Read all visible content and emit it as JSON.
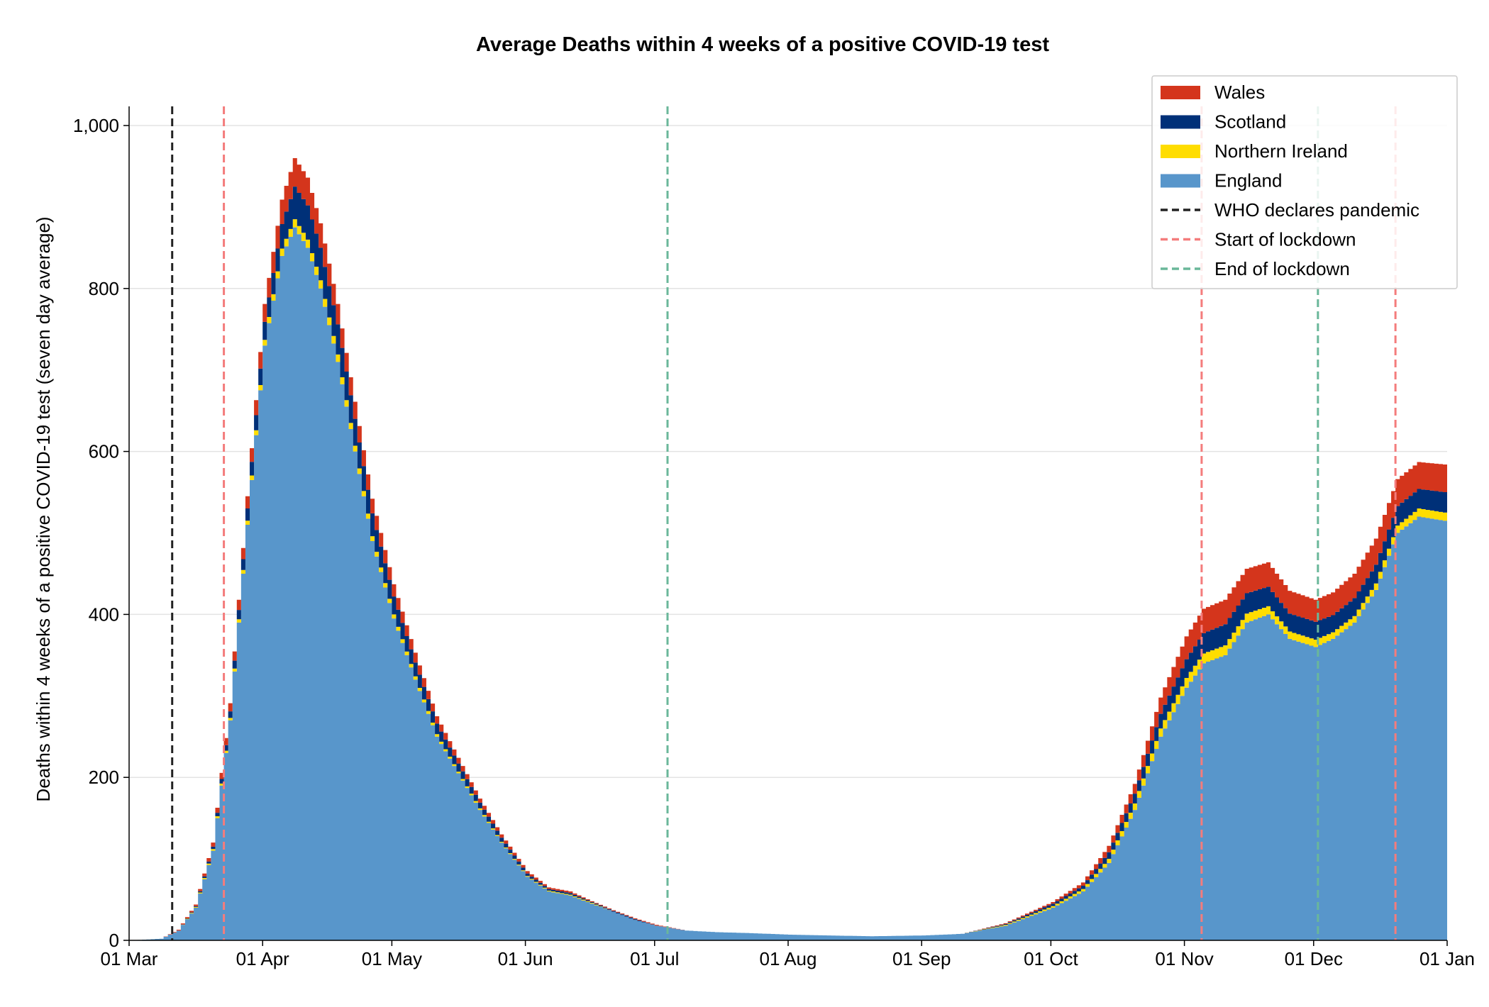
{
  "chart_data": {
    "type": "area",
    "stacked": true,
    "step": true,
    "title": "Average Deaths within 4 weeks of a positive COVID-19 test",
    "xlabel": "",
    "ylabel": "Deaths within 4 weeks of a positive COVID-19 test (seven day average)",
    "x_range": [
      "2020-03-01",
      "2021-01-01"
    ],
    "ylim": [
      0,
      1000
    ],
    "yticks": [
      0,
      200,
      400,
      600,
      800,
      1000
    ],
    "ytick_labels": [
      "0",
      "200",
      "400",
      "600",
      "800",
      "1,000"
    ],
    "xtick_labels": [
      "01 Mar",
      "01 Apr",
      "01 May",
      "01 Jun",
      "01 Jul",
      "01 Aug",
      "01 Sep",
      "01 Oct",
      "01 Nov",
      "01 Dec",
      "01 Jan"
    ],
    "grid": "y",
    "legend_position": "top-right",
    "dates": [
      "2020-03-01",
      "2020-03-08",
      "2020-03-12",
      "2020-03-16",
      "2020-03-20",
      "2020-03-24",
      "2020-03-28",
      "2020-04-01",
      "2020-04-05",
      "2020-04-08",
      "2020-04-11",
      "2020-04-14",
      "2020-04-18",
      "2020-04-22",
      "2020-04-26",
      "2020-05-01",
      "2020-05-06",
      "2020-05-11",
      "2020-05-16",
      "2020-05-21",
      "2020-05-26",
      "2020-06-01",
      "2020-06-06",
      "2020-06-11",
      "2020-06-16",
      "2020-06-21",
      "2020-06-26",
      "2020-07-01",
      "2020-07-08",
      "2020-07-15",
      "2020-07-22",
      "2020-08-01",
      "2020-08-10",
      "2020-08-20",
      "2020-09-01",
      "2020-09-10",
      "2020-09-20",
      "2020-10-01",
      "2020-10-08",
      "2020-10-14",
      "2020-10-20",
      "2020-10-26",
      "2020-11-01",
      "2020-11-05",
      "2020-11-10",
      "2020-11-15",
      "2020-11-20",
      "2020-11-25",
      "2020-12-01",
      "2020-12-05",
      "2020-12-10",
      "2020-12-15",
      "2020-12-20",
      "2020-12-25",
      "2020-12-31"
    ],
    "series": [
      {
        "name": "England",
        "color": "#5896cb",
        "values": [
          0,
          2,
          12,
          40,
          110,
          270,
          510,
          730,
          840,
          875,
          850,
          800,
          710,
          600,
          490,
          395,
          320,
          250,
          205,
          160,
          120,
          78,
          60,
          55,
          45,
          35,
          25,
          18,
          12,
          10,
          9,
          7,
          6,
          5,
          6,
          8,
          18,
          40,
          60,
          95,
          160,
          250,
          310,
          340,
          350,
          390,
          400,
          370,
          360,
          370,
          390,
          430,
          500,
          520,
          515
        ]
      },
      {
        "name": "Northern Ireland",
        "color": "#ffdd00",
        "values": [
          0,
          0,
          0,
          1,
          2,
          3,
          5,
          7,
          9,
          10,
          10,
          10,
          9,
          7,
          6,
          5,
          4,
          3,
          2,
          2,
          1,
          1,
          1,
          1,
          1,
          0,
          0,
          0,
          0,
          0,
          0,
          0,
          0,
          0,
          0,
          0,
          1,
          2,
          3,
          5,
          8,
          10,
          12,
          12,
          12,
          11,
          10,
          9,
          9,
          8,
          8,
          8,
          9,
          10,
          10
        ]
      },
      {
        "name": "Scotland",
        "color": "#003078",
        "values": [
          0,
          0,
          0,
          1,
          3,
          8,
          15,
          22,
          30,
          40,
          42,
          40,
          37,
          33,
          28,
          22,
          17,
          13,
          10,
          7,
          5,
          3,
          2,
          2,
          1,
          1,
          1,
          0,
          0,
          0,
          0,
          0,
          0,
          0,
          0,
          0,
          1,
          3,
          4,
          8,
          12,
          18,
          23,
          25,
          26,
          25,
          24,
          22,
          22,
          21,
          22,
          23,
          24,
          24,
          25
        ]
      },
      {
        "name": "Wales",
        "color": "#d4351c",
        "values": [
          0,
          0,
          1,
          2,
          5,
          10,
          15,
          22,
          30,
          35,
          34,
          30,
          25,
          21,
          18,
          15,
          12,
          9,
          7,
          5,
          4,
          3,
          2,
          2,
          1,
          1,
          1,
          1,
          0,
          0,
          0,
          0,
          0,
          0,
          0,
          0,
          1,
          2,
          4,
          8,
          12,
          20,
          28,
          30,
          30,
          30,
          30,
          28,
          27,
          28,
          30,
          32,
          33,
          33,
          34
        ]
      }
    ],
    "reference_lines": [
      {
        "label": "WHO declares pandemic",
        "date": "2020-03-11",
        "color": "#222222"
      },
      {
        "label": "Start of lockdown",
        "date": "2020-03-23",
        "color": "#f47c7c"
      },
      {
        "label": "End of lockdown",
        "date": "2020-07-04",
        "color": "#6ab79a"
      },
      {
        "label": "",
        "date": "2020-11-05",
        "color": "#f47c7c"
      },
      {
        "label": "",
        "date": "2020-12-02",
        "color": "#6ab79a"
      },
      {
        "label": "",
        "date": "2020-12-20",
        "color": "#f47c7c"
      }
    ],
    "legend": [
      {
        "label": "Wales",
        "kind": "patch",
        "color": "#d4351c"
      },
      {
        "label": "Scotland",
        "kind": "patch",
        "color": "#003078"
      },
      {
        "label": "Northern Ireland",
        "kind": "patch",
        "color": "#ffdd00"
      },
      {
        "label": "England",
        "kind": "patch",
        "color": "#5896cb"
      },
      {
        "label": "WHO declares pandemic",
        "kind": "dashed",
        "color": "#222222"
      },
      {
        "label": "Start of lockdown",
        "kind": "dashed",
        "color": "#f47c7c"
      },
      {
        "label": "End of lockdown",
        "kind": "dashed",
        "color": "#6ab79a"
      }
    ]
  }
}
